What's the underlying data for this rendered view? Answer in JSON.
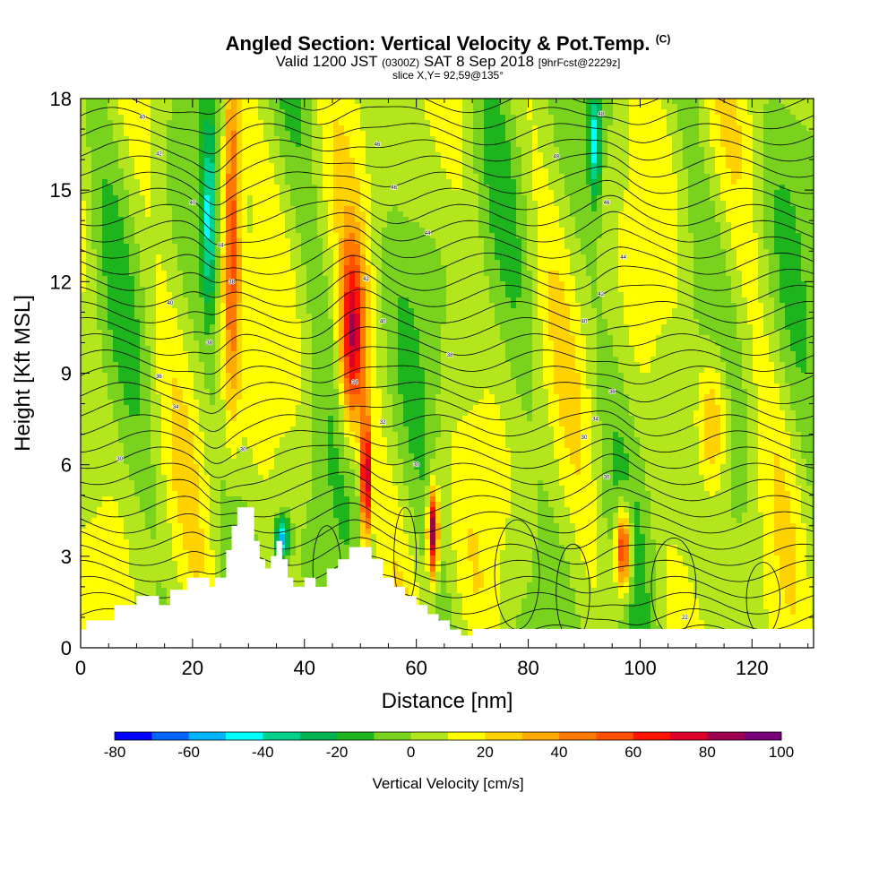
{
  "header": {
    "title": "Angled Section: Vertical Velocity & Pot.Temp.",
    "title_suffix": "(C)",
    "valid_prefix": "Valid 1200 JST",
    "valid_utc": "(0300Z)",
    "valid_date": "SAT 8 Sep 2018",
    "forecast": "[9hrFcst@2229z]",
    "slice": "slice X,Y= 92,59@135°"
  },
  "chart_data": {
    "type": "heatmap",
    "title": "Angled Section: Vertical Velocity & Pot.Temp.",
    "xlabel": "Distance [nm]",
    "ylabel": "Height [Kft MSL]",
    "xlim": [
      0,
      131
    ],
    "ylim": [
      0,
      18
    ],
    "x_ticks": [
      0,
      20,
      40,
      60,
      80,
      100,
      120
    ],
    "y_ticks": [
      0,
      3,
      6,
      9,
      12,
      15,
      18
    ],
    "colorbar": {
      "label": "Vertical Velocity [cm/s]",
      "ticks": [
        -80,
        -60,
        -40,
        -20,
        0,
        20,
        40,
        60,
        80,
        100
      ],
      "levels": [
        -80,
        -70,
        -60,
        -50,
        -40,
        -30,
        -20,
        -10,
        0,
        10,
        20,
        30,
        40,
        50,
        60,
        70,
        80,
        90,
        100
      ],
      "colors": [
        "#0000ff",
        "#0064ff",
        "#00b4ff",
        "#00ffff",
        "#00d28c",
        "#00b450",
        "#1eb41e",
        "#78d21e",
        "#b4e61e",
        "#ffff00",
        "#ffd200",
        "#ffaa00",
        "#ff7800",
        "#ff5000",
        "#ff1400",
        "#dc0028",
        "#a00050",
        "#780078"
      ]
    },
    "terrain_profile": {
      "x": [
        0,
        1,
        1,
        6,
        6,
        10,
        10,
        14,
        14,
        16,
        16,
        19,
        19,
        23,
        23,
        24,
        24,
        26,
        26,
        27,
        27,
        28,
        28,
        31,
        31,
        32,
        32,
        33,
        33,
        34,
        34,
        35,
        35,
        36,
        36,
        37,
        37,
        38,
        38,
        40,
        40,
        42,
        42,
        44,
        44,
        46,
        46,
        48,
        48,
        50,
        50,
        52,
        52,
        54,
        54,
        56,
        56,
        58,
        58,
        60,
        60,
        62,
        62,
        64,
        64,
        66,
        66,
        68,
        68,
        70,
        70
      ],
      "height": [
        0.6,
        0.6,
        0.9,
        0.9,
        1.4,
        1.4,
        1.7,
        1.7,
        1.4,
        1.4,
        1.9,
        1.9,
        2.3,
        2.3,
        2.0,
        2.0,
        2.3,
        2.3,
        3.2,
        3.2,
        4.0,
        4.0,
        4.6,
        4.6,
        3.5,
        3.5,
        2.9,
        2.9,
        2.6,
        2.6,
        3.0,
        3.0,
        3.5,
        3.5,
        2.9,
        2.9,
        2.3,
        2.3,
        2.0,
        2.0,
        2.3,
        2.3,
        2.0,
        2.0,
        2.6,
        2.6,
        2.9,
        2.9,
        3.3,
        3.3,
        3.3,
        3.3,
        2.9,
        2.9,
        2.3,
        2.3,
        2.0,
        2.0,
        1.7,
        1.7,
        1.4,
        1.4,
        1.1,
        1.1,
        0.9,
        0.9,
        0.6,
        0.6,
        0.4,
        0.4,
        0.0
      ]
    },
    "updraft_cores": [
      {
        "x": 27,
        "z": 14,
        "w": 55
      },
      {
        "x": 48.5,
        "z": 10,
        "w": 70
      },
      {
        "x": 51,
        "z": 5.5,
        "w": 85
      },
      {
        "x": 63,
        "z": 3.8,
        "w": 95
      },
      {
        "x": 97,
        "z": 3.2,
        "w": 75
      },
      {
        "x": 113,
        "z": 7.5,
        "w": 35
      }
    ],
    "downdraft_cores": [
      {
        "x": 23,
        "z": 14,
        "w": -40
      },
      {
        "x": 36,
        "z": 3.6,
        "w": -60
      },
      {
        "x": 92,
        "z": 16.5,
        "w": -45
      }
    ],
    "contour_labels": [
      {
        "x": 11,
        "z": 17.4,
        "text": "40"
      },
      {
        "x": 14,
        "z": 16.2,
        "text": "42"
      },
      {
        "x": 20,
        "z": 14.6,
        "text": "40"
      },
      {
        "x": 25,
        "z": 13.2,
        "text": "44"
      },
      {
        "x": 27,
        "z": 12,
        "text": "38"
      },
      {
        "x": 16,
        "z": 11.3,
        "text": "40"
      },
      {
        "x": 23,
        "z": 10.0,
        "text": "38"
      },
      {
        "x": 14,
        "z": 8.9,
        "text": "36"
      },
      {
        "x": 17,
        "z": 7.9,
        "text": "34"
      },
      {
        "x": 7,
        "z": 6.2,
        "text": "30"
      },
      {
        "x": 29,
        "z": 6.5,
        "text": "30"
      },
      {
        "x": 53,
        "z": 16.5,
        "text": "46"
      },
      {
        "x": 56,
        "z": 15.1,
        "text": "46"
      },
      {
        "x": 62,
        "z": 13.6,
        "text": "44"
      },
      {
        "x": 51,
        "z": 12.1,
        "text": "42"
      },
      {
        "x": 54,
        "z": 10.7,
        "text": "40"
      },
      {
        "x": 66,
        "z": 9.6,
        "text": "38"
      },
      {
        "x": 49,
        "z": 8.7,
        "text": "34"
      },
      {
        "x": 54,
        "z": 7.4,
        "text": "32"
      },
      {
        "x": 60,
        "z": 6.0,
        "text": "30"
      },
      {
        "x": 85,
        "z": 16.1,
        "text": "48"
      },
      {
        "x": 93,
        "z": 17.5,
        "text": "48"
      },
      {
        "x": 94,
        "z": 14.6,
        "text": "46"
      },
      {
        "x": 97,
        "z": 12.8,
        "text": "44"
      },
      {
        "x": 93,
        "z": 11.6,
        "text": "42"
      },
      {
        "x": 90,
        "z": 10.7,
        "text": "40"
      },
      {
        "x": 95,
        "z": 8.4,
        "text": "36"
      },
      {
        "x": 92,
        "z": 7.5,
        "text": "34"
      },
      {
        "x": 90,
        "z": 6.9,
        "text": "30"
      },
      {
        "x": 94,
        "z": 5.6,
        "text": "30"
      },
      {
        "x": 108,
        "z": 1.0,
        "text": "22"
      }
    ]
  }
}
